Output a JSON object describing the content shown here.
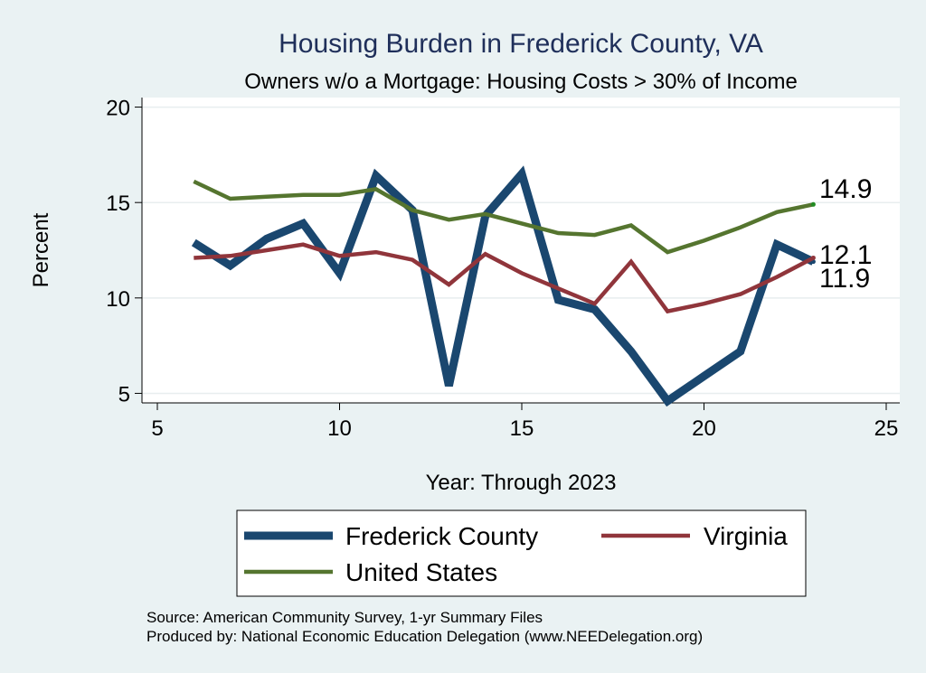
{
  "chart_data": {
    "type": "line",
    "title": "Housing Burden in Frederick County, VA",
    "subtitle": "Owners w/o a Mortgage: Housing Costs > 30% of Income",
    "xlabel": "Year: Through 2023",
    "ylabel": "Percent",
    "xlim": [
      5,
      25
    ],
    "ylim": [
      4.5,
      20.5
    ],
    "xticks": [
      5,
      10,
      15,
      20,
      25
    ],
    "yticks": [
      5,
      10,
      15,
      20
    ],
    "grid": "horizontal",
    "legend_position": "bottom",
    "series": [
      {
        "name": "Frederick County",
        "color": "#1a476f",
        "x": [
          6,
          7,
          8,
          9,
          10,
          11,
          12,
          13,
          14,
          15,
          16,
          17,
          18,
          19,
          20,
          21,
          22,
          23
        ],
        "values": [
          12.9,
          11.7,
          13.1,
          13.9,
          11.3,
          16.4,
          14.6,
          5.4,
          14.3,
          16.5,
          9.9,
          9.4,
          7.2,
          4.6,
          5.9,
          7.2,
          12.8,
          11.9
        ],
        "end_label": "11.9"
      },
      {
        "name": "Virginia",
        "color": "#90353b",
        "x": [
          6,
          7,
          8,
          9,
          10,
          11,
          12,
          13,
          14,
          15,
          16,
          17,
          18,
          19,
          20,
          21,
          22,
          23
        ],
        "values": [
          12.1,
          12.2,
          12.5,
          12.8,
          12.2,
          12.4,
          12.0,
          10.7,
          12.3,
          11.3,
          10.5,
          9.7,
          11.9,
          9.3,
          9.7,
          10.2,
          11.1,
          12.1
        ],
        "end_label": "12.1"
      },
      {
        "name": "United States",
        "color": "#55752f",
        "x": [
          6,
          7,
          8,
          9,
          10,
          11,
          12,
          13,
          14,
          15,
          16,
          17,
          18,
          19,
          20,
          21,
          22,
          23
        ],
        "values": [
          16.1,
          15.2,
          15.3,
          15.4,
          15.4,
          15.7,
          14.6,
          14.1,
          14.4,
          13.9,
          13.4,
          13.3,
          13.8,
          12.4,
          13.0,
          13.7,
          14.5,
          14.9
        ],
        "end_label": "14.9"
      }
    ],
    "notes": [
      "Source: American Community Survey, 1-yr Summary Files",
      "Produced by: National Economic Education Delegation (www.NEEDelegation.org)"
    ]
  }
}
